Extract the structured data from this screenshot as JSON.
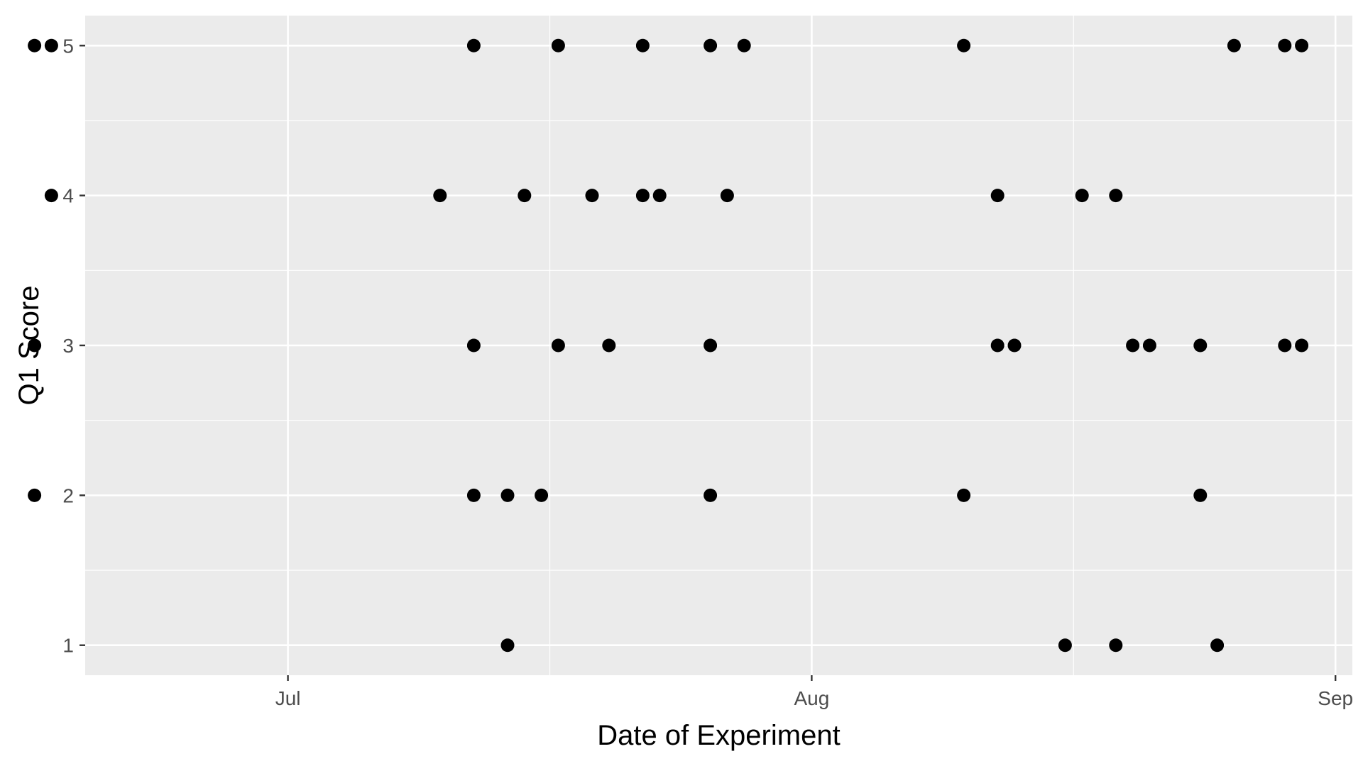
{
  "chart_data": {
    "type": "scatter",
    "title": "",
    "xlabel": "Date of Experiment",
    "ylabel": "Q1 Score",
    "x_axis": {
      "type": "date",
      "range": [
        "2023-06-19",
        "2023-09-02"
      ],
      "ticks": [
        {
          "date": "2023-07-01",
          "label": "Jul"
        },
        {
          "date": "2023-08-01",
          "label": "Aug"
        },
        {
          "date": "2023-09-01",
          "label": "Sep"
        }
      ]
    },
    "y_axis": {
      "range": [
        0.8,
        5.2
      ],
      "ticks": [
        1,
        2,
        3,
        4,
        5
      ],
      "minor_gridlines": true
    },
    "grid": true,
    "theme": {
      "panel_background": "#ebebeb",
      "grid_color": "#ffffff",
      "point_color": "#000000"
    },
    "points": [
      {
        "x": "2023-06-16",
        "y": 5
      },
      {
        "x": "2023-06-17",
        "y": 5
      },
      {
        "x": "2023-06-17",
        "y": 4
      },
      {
        "x": "2023-06-16",
        "y": 3
      },
      {
        "x": "2023-06-16",
        "y": 2
      },
      {
        "x": "2023-07-10",
        "y": 4
      },
      {
        "x": "2023-07-12",
        "y": 5
      },
      {
        "x": "2023-07-12",
        "y": 3
      },
      {
        "x": "2023-07-12",
        "y": 2
      },
      {
        "x": "2023-07-14",
        "y": 2
      },
      {
        "x": "2023-07-14",
        "y": 1
      },
      {
        "x": "2023-07-15",
        "y": 4
      },
      {
        "x": "2023-07-16",
        "y": 2
      },
      {
        "x": "2023-07-17",
        "y": 5
      },
      {
        "x": "2023-07-17",
        "y": 3
      },
      {
        "x": "2023-07-19",
        "y": 4
      },
      {
        "x": "2023-07-20",
        "y": 3
      },
      {
        "x": "2023-07-22",
        "y": 5
      },
      {
        "x": "2023-07-22",
        "y": 4
      },
      {
        "x": "2023-07-23",
        "y": 4
      },
      {
        "x": "2023-07-26",
        "y": 5
      },
      {
        "x": "2023-07-26",
        "y": 3
      },
      {
        "x": "2023-07-26",
        "y": 2
      },
      {
        "x": "2023-07-27",
        "y": 4
      },
      {
        "x": "2023-07-28",
        "y": 5
      },
      {
        "x": "2023-08-10",
        "y": 5
      },
      {
        "x": "2023-08-10",
        "y": 2
      },
      {
        "x": "2023-08-12",
        "y": 4
      },
      {
        "x": "2023-08-12",
        "y": 3
      },
      {
        "x": "2023-08-13",
        "y": 3
      },
      {
        "x": "2023-08-16",
        "y": 1
      },
      {
        "x": "2023-08-17",
        "y": 4
      },
      {
        "x": "2023-08-19",
        "y": 4
      },
      {
        "x": "2023-08-19",
        "y": 1
      },
      {
        "x": "2023-08-20",
        "y": 3
      },
      {
        "x": "2023-08-21",
        "y": 3
      },
      {
        "x": "2023-08-24",
        "y": 2
      },
      {
        "x": "2023-08-24",
        "y": 3
      },
      {
        "x": "2023-08-25",
        "y": 1
      },
      {
        "x": "2023-08-26",
        "y": 5
      },
      {
        "x": "2023-08-29",
        "y": 5
      },
      {
        "x": "2023-08-29",
        "y": 3
      },
      {
        "x": "2023-08-30",
        "y": 5
      },
      {
        "x": "2023-08-30",
        "y": 3
      }
    ]
  }
}
